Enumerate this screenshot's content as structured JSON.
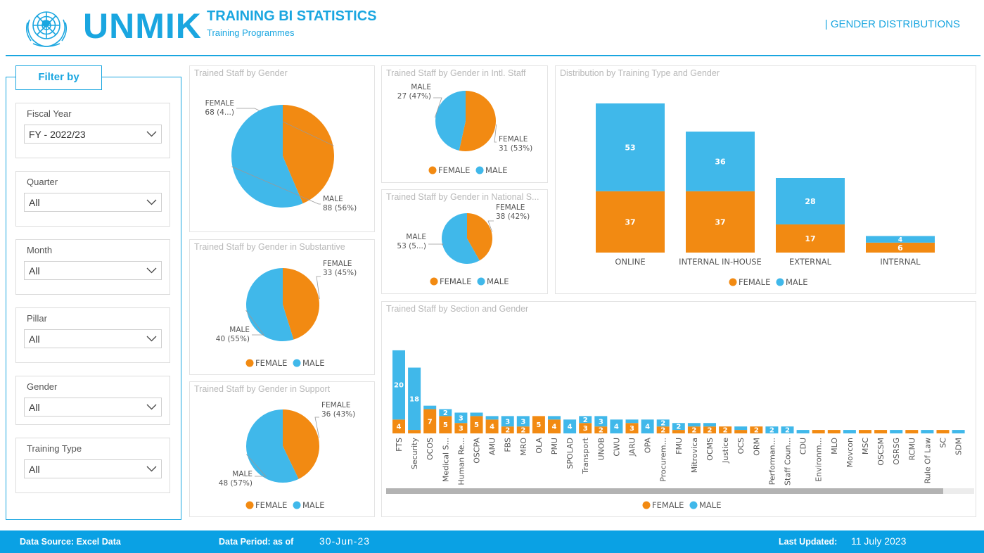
{
  "header": {
    "brand": "UNMIK",
    "title": "TRAINING BI STATISTICS",
    "subtitle": "Training Programmes",
    "page_name": "| GENDER DISTRIBUTIONS"
  },
  "filters": {
    "title": "Filter by",
    "items": [
      {
        "label": "Fiscal Year",
        "value": "FY - 2022/23"
      },
      {
        "label": "Quarter",
        "value": "All"
      },
      {
        "label": "Month",
        "value": "All"
      },
      {
        "label": "Pillar",
        "value": "All"
      },
      {
        "label": "Gender",
        "value": "All"
      },
      {
        "label": "Training Type",
        "value": "All"
      }
    ]
  },
  "colors": {
    "female": "#f28a12",
    "male": "#40b8ea",
    "accent": "#1aa6e0",
    "footer": "#0aa1e4"
  },
  "legend": {
    "female": "FEMALE",
    "male": "MALE"
  },
  "footer": {
    "source_label": "Data Source: Excel Data",
    "period_label": "Data Period: as of",
    "period_value": "30-Jun-23",
    "updated_label": "Last Updated:",
    "updated_value": "11 July 2023"
  },
  "chart_data": [
    {
      "id": "gender",
      "type": "pie",
      "title": "Trained Staff by Gender",
      "slices": [
        {
          "name": "FEMALE",
          "value": 68,
          "label_line1": "FEMALE",
          "label_line2": "68 (4...)"
        },
        {
          "name": "MALE",
          "value": 88,
          "label_line1": "MALE",
          "label_line2": "88 (56%)"
        }
      ]
    },
    {
      "id": "substantive",
      "type": "pie",
      "title": "Trained Staff by Gender in Substantive",
      "slices": [
        {
          "name": "FEMALE",
          "value": 33,
          "label_line1": "FEMALE",
          "label_line2": "33 (45%)"
        },
        {
          "name": "MALE",
          "value": 40,
          "label_line1": "MALE",
          "label_line2": "40 (55%)"
        }
      ]
    },
    {
      "id": "support",
      "type": "pie",
      "title": "Trained Staff by Gender in Support",
      "slices": [
        {
          "name": "FEMALE",
          "value": 36,
          "label_line1": "FEMALE",
          "label_line2": "36 (43%)"
        },
        {
          "name": "MALE",
          "value": 48,
          "label_line1": "MALE",
          "label_line2": "48 (57%)"
        }
      ]
    },
    {
      "id": "intl",
      "type": "pie",
      "title": "Trained Staff by Gender in Intl. Staff",
      "slices": [
        {
          "name": "FEMALE",
          "value": 31,
          "label_line1": "FEMALE",
          "label_line2": "31 (53%)"
        },
        {
          "name": "MALE",
          "value": 27,
          "label_line1": "MALE",
          "label_line2": "27 (47%)"
        }
      ]
    },
    {
      "id": "national",
      "type": "pie",
      "title": "Trained Staff by Gender in National S...",
      "slices": [
        {
          "name": "FEMALE",
          "value": 38,
          "label_line1": "FEMALE",
          "label_line2": "38 (42%)"
        },
        {
          "name": "MALE",
          "value": 53,
          "label_line1": "MALE",
          "label_line2": "53 (5...)"
        }
      ]
    },
    {
      "id": "training_type",
      "type": "bar",
      "stacked": true,
      "title": "Distribution by Training Type and Gender",
      "categories": [
        "ONLINE",
        "INTERNAL IN-HOUSE",
        "EXTERNAL",
        "INTERNAL"
      ],
      "series": [
        {
          "name": "FEMALE",
          "values": [
            37,
            37,
            17,
            6
          ]
        },
        {
          "name": "MALE",
          "values": [
            53,
            36,
            28,
            4
          ]
        }
      ],
      "ylim": [
        0,
        90
      ]
    },
    {
      "id": "section",
      "type": "bar",
      "stacked": true,
      "title": "Trained Staff by Section and Gender",
      "categories": [
        "FTS",
        "Security",
        "OCOS",
        "Medical S...",
        "Human Re...",
        "OSCPA",
        "AMU",
        "FBS",
        "MRO",
        "OLA",
        "PMU",
        "SPOLAD",
        "Transport",
        "UNOB",
        "CWU",
        "JARU",
        "OPA",
        "Procurem...",
        "FMU",
        "Mitrovica",
        "OCMS",
        "Justice",
        "OCS",
        "ORM",
        "Performan...",
        "Staff Coun...",
        "CDU",
        "Environm...",
        "MLO",
        "Movcon",
        "MSC",
        "OSCSM",
        "OSRSG",
        "RCMU",
        "Rule Of Law",
        "SC",
        "SDM"
      ],
      "series": [
        {
          "name": "FEMALE",
          "values": [
            4,
            1,
            7,
            5,
            3,
            5,
            4,
            2,
            2,
            5,
            4,
            0,
            3,
            2,
            0,
            3,
            0,
            2,
            1,
            2,
            2,
            2,
            1,
            2,
            0,
            0,
            0,
            1,
            1,
            0,
            1,
            1,
            0,
            1,
            0,
            1,
            0
          ]
        },
        {
          "name": "MALE",
          "values": [
            20,
            18,
            1,
            2,
            3,
            1,
            1,
            3,
            3,
            0,
            1,
            4,
            2,
            3,
            4,
            1,
            4,
            2,
            2,
            1,
            1,
            0,
            1,
            0,
            2,
            2,
            1,
            0,
            0,
            1,
            0,
            0,
            1,
            0,
            1,
            0,
            1
          ]
        }
      ],
      "ylim": [
        0,
        25
      ]
    }
  ]
}
